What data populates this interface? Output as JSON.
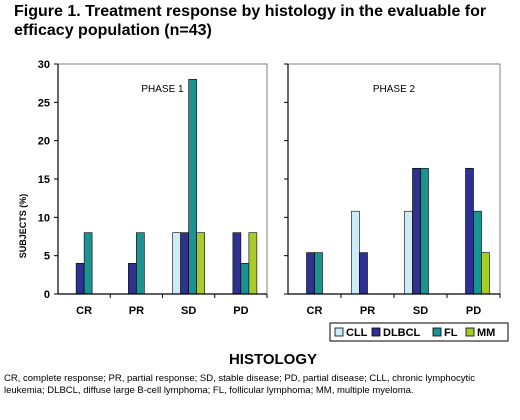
{
  "figure": {
    "title_line1": "Figure 1. Treatment response by histology in the evaluable for",
    "title_line2": "efficacy population (n=43)",
    "footnote_line1": "CR, complete response; PR, partial response; SD, stable disease; PD, partial disease; CLL, chronic lymphocytic",
    "footnote_line2": "leukemia; DLBCL, diffuse large B-cell lymphoma; FL, follicular lymphoma; MM, multiple myeloma."
  },
  "chart_data": {
    "type": "bar",
    "xlabel": "HISTOLOGY",
    "ylabel": "SUBJECTS (%)",
    "ylim": [
      0,
      30
    ],
    "yticks": [
      0,
      5,
      10,
      15,
      20,
      25,
      30
    ],
    "grid": false,
    "legend_placement": "bottom-right",
    "categories": [
      "CR",
      "PR",
      "SD",
      "PD"
    ],
    "series": [
      {
        "name": "CLL",
        "color": "#ccecf7"
      },
      {
        "name": "DLBCL",
        "color": "#2e3192"
      },
      {
        "name": "FL",
        "color": "#1a9492"
      },
      {
        "name": "MM",
        "color": "#a8cd2a"
      }
    ],
    "panels": [
      {
        "label": "PHASE 1",
        "values": {
          "CLL": [
            0,
            0,
            8,
            0
          ],
          "DLBCL": [
            4,
            4,
            8,
            8
          ],
          "FL": [
            8,
            8,
            28,
            4
          ],
          "MM": [
            0,
            0,
            8,
            8
          ]
        }
      },
      {
        "label": "PHASE 2",
        "values": {
          "CLL": [
            0,
            10.8,
            10.8,
            0
          ],
          "DLBCL": [
            5.4,
            5.4,
            16.4,
            16.4
          ],
          "FL": [
            5.4,
            0,
            16.4,
            10.8
          ],
          "MM": [
            0,
            0,
            0,
            5.4
          ]
        }
      }
    ]
  }
}
